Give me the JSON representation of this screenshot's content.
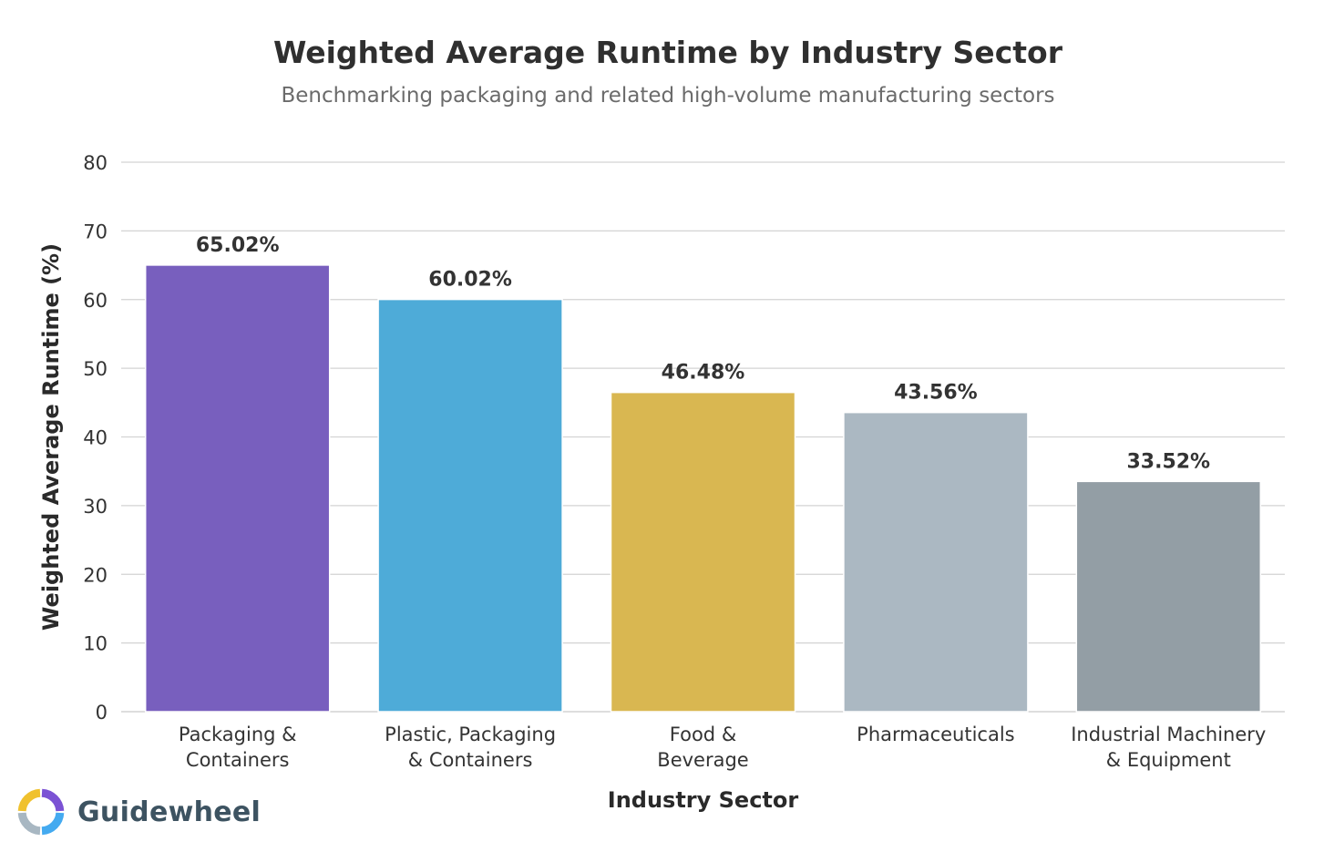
{
  "chart_data": {
    "type": "bar",
    "title": "Weighted Average Runtime by Industry Sector",
    "subtitle": "Benchmarking packaging and related high-volume manufacturing sectors",
    "xlabel": "Industry Sector",
    "ylabel": "Weighted Average Runtime (%)",
    "ylim": [
      0,
      80
    ],
    "yticks": [
      0,
      10,
      20,
      30,
      40,
      50,
      60,
      70,
      80
    ],
    "grid": true,
    "categories": [
      [
        "Packaging &",
        "Containers"
      ],
      [
        "Plastic, Packaging",
        "& Containers"
      ],
      [
        "Food &",
        "Beverage"
      ],
      [
        "Pharmaceuticals"
      ],
      [
        "Industrial Machinery",
        "& Equipment"
      ]
    ],
    "values": [
      65.02,
      60.02,
      46.48,
      43.56,
      33.52
    ],
    "value_labels": [
      "65.02%",
      "60.02%",
      "46.48%",
      "43.56%",
      "33.52%"
    ],
    "colors": [
      "#785fbe",
      "#4eabd8",
      "#d9b751",
      "#abb8c2",
      "#939ea5"
    ]
  },
  "brand": {
    "name": "Guidewheel",
    "logo_colors": [
      "#7b52d4",
      "#44aaf0",
      "#a8b7c2",
      "#f0c12e"
    ]
  }
}
